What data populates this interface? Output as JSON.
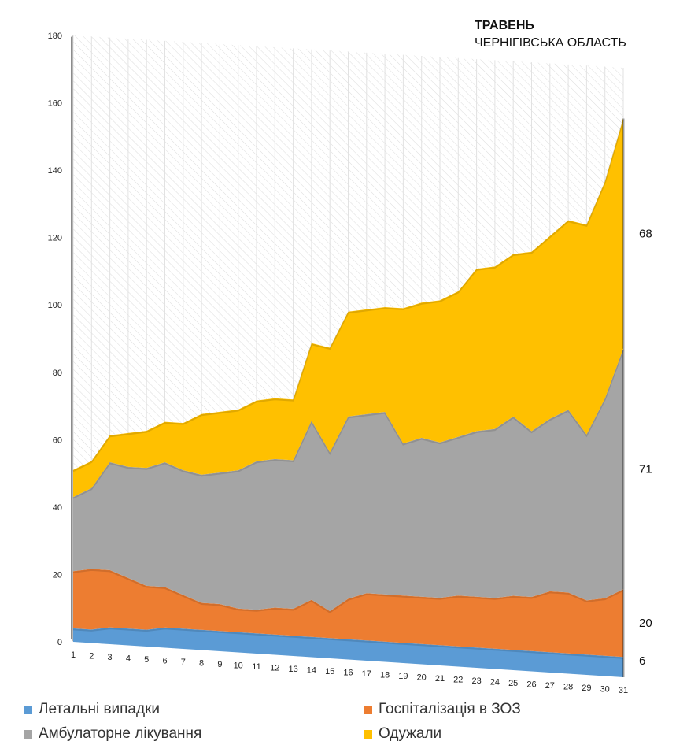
{
  "title": "ТРАВЕНЬ",
  "subtitle": "ЧЕРНІГІВСЬКА ОБЛАСТЬ",
  "colors": {
    "fatal": "#5b9bd5",
    "hospital": "#ed7d31",
    "ambulatory": "#a5a5a5",
    "recovered": "#ffc000",
    "wall": "#e7e7e7",
    "side": "#8c8c8c"
  },
  "legend": [
    {
      "label": "Летальні випадки",
      "color": "#5b9bd5"
    },
    {
      "label": "Госпіталізація в ЗОЗ",
      "color": "#ed7d31"
    },
    {
      "label": "Амбулаторне лікування",
      "color": "#a5a5a5"
    },
    {
      "label": "Одужали",
      "color": "#ffc000"
    }
  ],
  "chart_data": {
    "type": "area",
    "stacked": true,
    "title": "ТРАВЕНЬ",
    "subtitle": "ЧЕРНІГІВСЬКА ОБЛАСТЬ",
    "categories": [
      "1",
      "2",
      "3",
      "4",
      "5",
      "6",
      "7",
      "8",
      "9",
      "10",
      "11",
      "12",
      "13",
      "14",
      "15",
      "16",
      "17",
      "18",
      "19",
      "20",
      "21",
      "22",
      "23",
      "24",
      "25",
      "26",
      "27",
      "28",
      "29",
      "30",
      "31"
    ],
    "ylim": [
      0,
      180
    ],
    "yticks": [
      0,
      20,
      40,
      60,
      80,
      100,
      120,
      140,
      160,
      180
    ],
    "grid": true,
    "legend_position": "bottom",
    "series": [
      {
        "name": "Летальні випадки",
        "values": [
          4,
          4,
          5,
          5,
          5,
          6,
          6,
          6,
          6,
          6,
          6,
          6,
          6,
          6,
          6,
          6,
          6,
          6,
          6,
          6,
          6,
          6,
          6,
          6,
          6,
          6,
          6,
          6,
          6,
          6,
          6
        ]
      },
      {
        "name": "Госпіталізація в ЗОЗ",
        "values": [
          17,
          18,
          17,
          15,
          13,
          12,
          10,
          8,
          8,
          7,
          7,
          8,
          8,
          11,
          8,
          12,
          14,
          14,
          14,
          14,
          14,
          15,
          15,
          15,
          16,
          16,
          18,
          18,
          16,
          17,
          20
        ]
      },
      {
        "name": "Амбулаторне лікування",
        "values": [
          22,
          24,
          32,
          33,
          35,
          37,
          37,
          38,
          39,
          41,
          44,
          44,
          44,
          53,
          47,
          54,
          53,
          54,
          45,
          47,
          46,
          47,
          49,
          50,
          53,
          49,
          51,
          54,
          49,
          59,
          71
        ]
      },
      {
        "name": "Одужали",
        "values": [
          8,
          8,
          8,
          10,
          11,
          12,
          14,
          18,
          18,
          18,
          18,
          18,
          18,
          23,
          31,
          31,
          31,
          31,
          40,
          40,
          42,
          43,
          48,
          48,
          48,
          53,
          54,
          56,
          62,
          64,
          68
        ]
      }
    ],
    "end_labels": [
      "68",
      "71",
      "20",
      "6"
    ]
  }
}
